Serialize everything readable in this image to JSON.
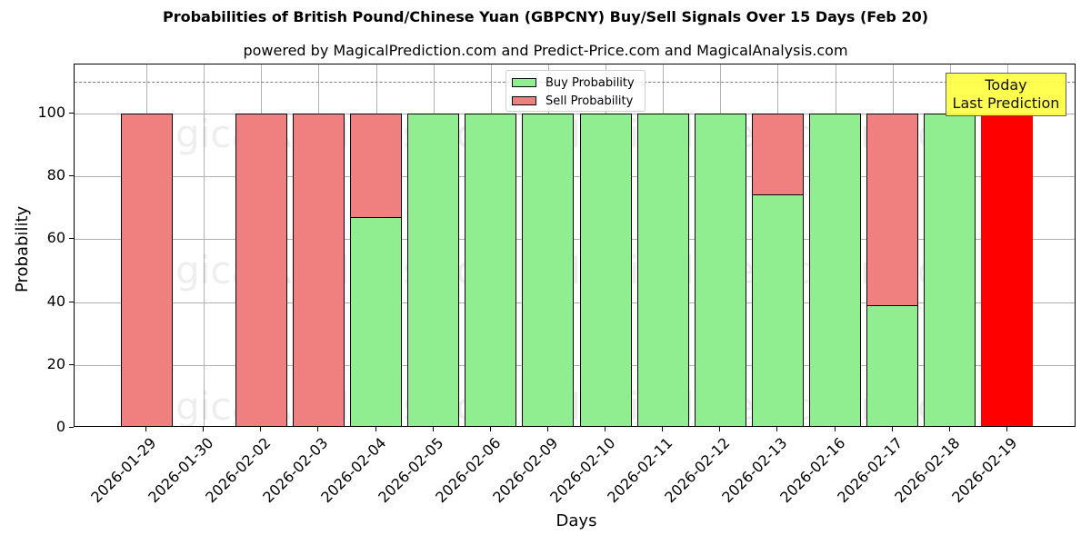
{
  "header": {
    "title": "Probabilities of British Pound/Chinese Yuan (GBPCNY) Buy/Sell Signals Over 15 Days (Feb 20)",
    "subtitle": "powered by MagicalPrediction.com and Predict-Price.com and MagicalAnalysis.com"
  },
  "legend": {
    "buy_label": "Buy Probability",
    "sell_label": "Sell Probability"
  },
  "annotation": {
    "line1": "Today",
    "line2": "Last Prediction"
  },
  "watermarks": [
    "MagicalAnalysis.com",
    "MagicalPrediction.com"
  ],
  "colors": {
    "buy": "#90ee90",
    "sell": "#f08080",
    "today": "#ff0000",
    "annotation_bg": "#ffff44",
    "grid": "#b0b0b0",
    "reference_line": "#808080"
  },
  "chart_data": {
    "type": "bar",
    "stacked": true,
    "title": "Probabilities of British Pound/Chinese Yuan (GBPCNY) Buy/Sell Signals Over 15 Days (Feb 20)",
    "subtitle": "powered by MagicalPrediction.com and Predict-Price.com and MagicalAnalysis.com",
    "xlabel": "Days",
    "ylabel": "Probability",
    "ylim": [
      0,
      115.6
    ],
    "yticks": [
      0,
      20,
      40,
      60,
      80,
      100
    ],
    "grid": true,
    "legend_position": "upper center",
    "reference_line": {
      "y": 110,
      "style": "dashed",
      "color": "#808080"
    },
    "categories": [
      "2026-01-29",
      "2026-01-30",
      "2026-02-02",
      "2026-02-03",
      "2026-02-04",
      "2026-02-05",
      "2026-02-06",
      "2026-02-09",
      "2026-02-10",
      "2026-02-11",
      "2026-02-12",
      "2026-02-13",
      "2026-02-16",
      "2026-02-17",
      "2026-02-18",
      "2026-02-19"
    ],
    "series": [
      {
        "name": "Buy Probability",
        "color": "#90ee90",
        "values": [
          0,
          0,
          0,
          0,
          67,
          100,
          100,
          100,
          100,
          100,
          100,
          74.4,
          100,
          38.9,
          100,
          0
        ]
      },
      {
        "name": "Sell Probability",
        "color": "#f08080",
        "values": [
          100,
          0,
          100,
          100,
          33,
          0,
          0,
          0,
          0,
          0,
          0,
          25.6,
          0,
          61.1,
          0,
          0
        ]
      },
      {
        "name": "Today (Last Prediction)",
        "color": "#ff0000",
        "values": [
          0,
          0,
          0,
          0,
          0,
          0,
          0,
          0,
          0,
          0,
          0,
          0,
          0,
          0,
          0,
          100
        ]
      }
    ],
    "annotations": [
      {
        "text": "Today\nLast Prediction",
        "x": "2026-02-19",
        "y": 105
      }
    ]
  }
}
